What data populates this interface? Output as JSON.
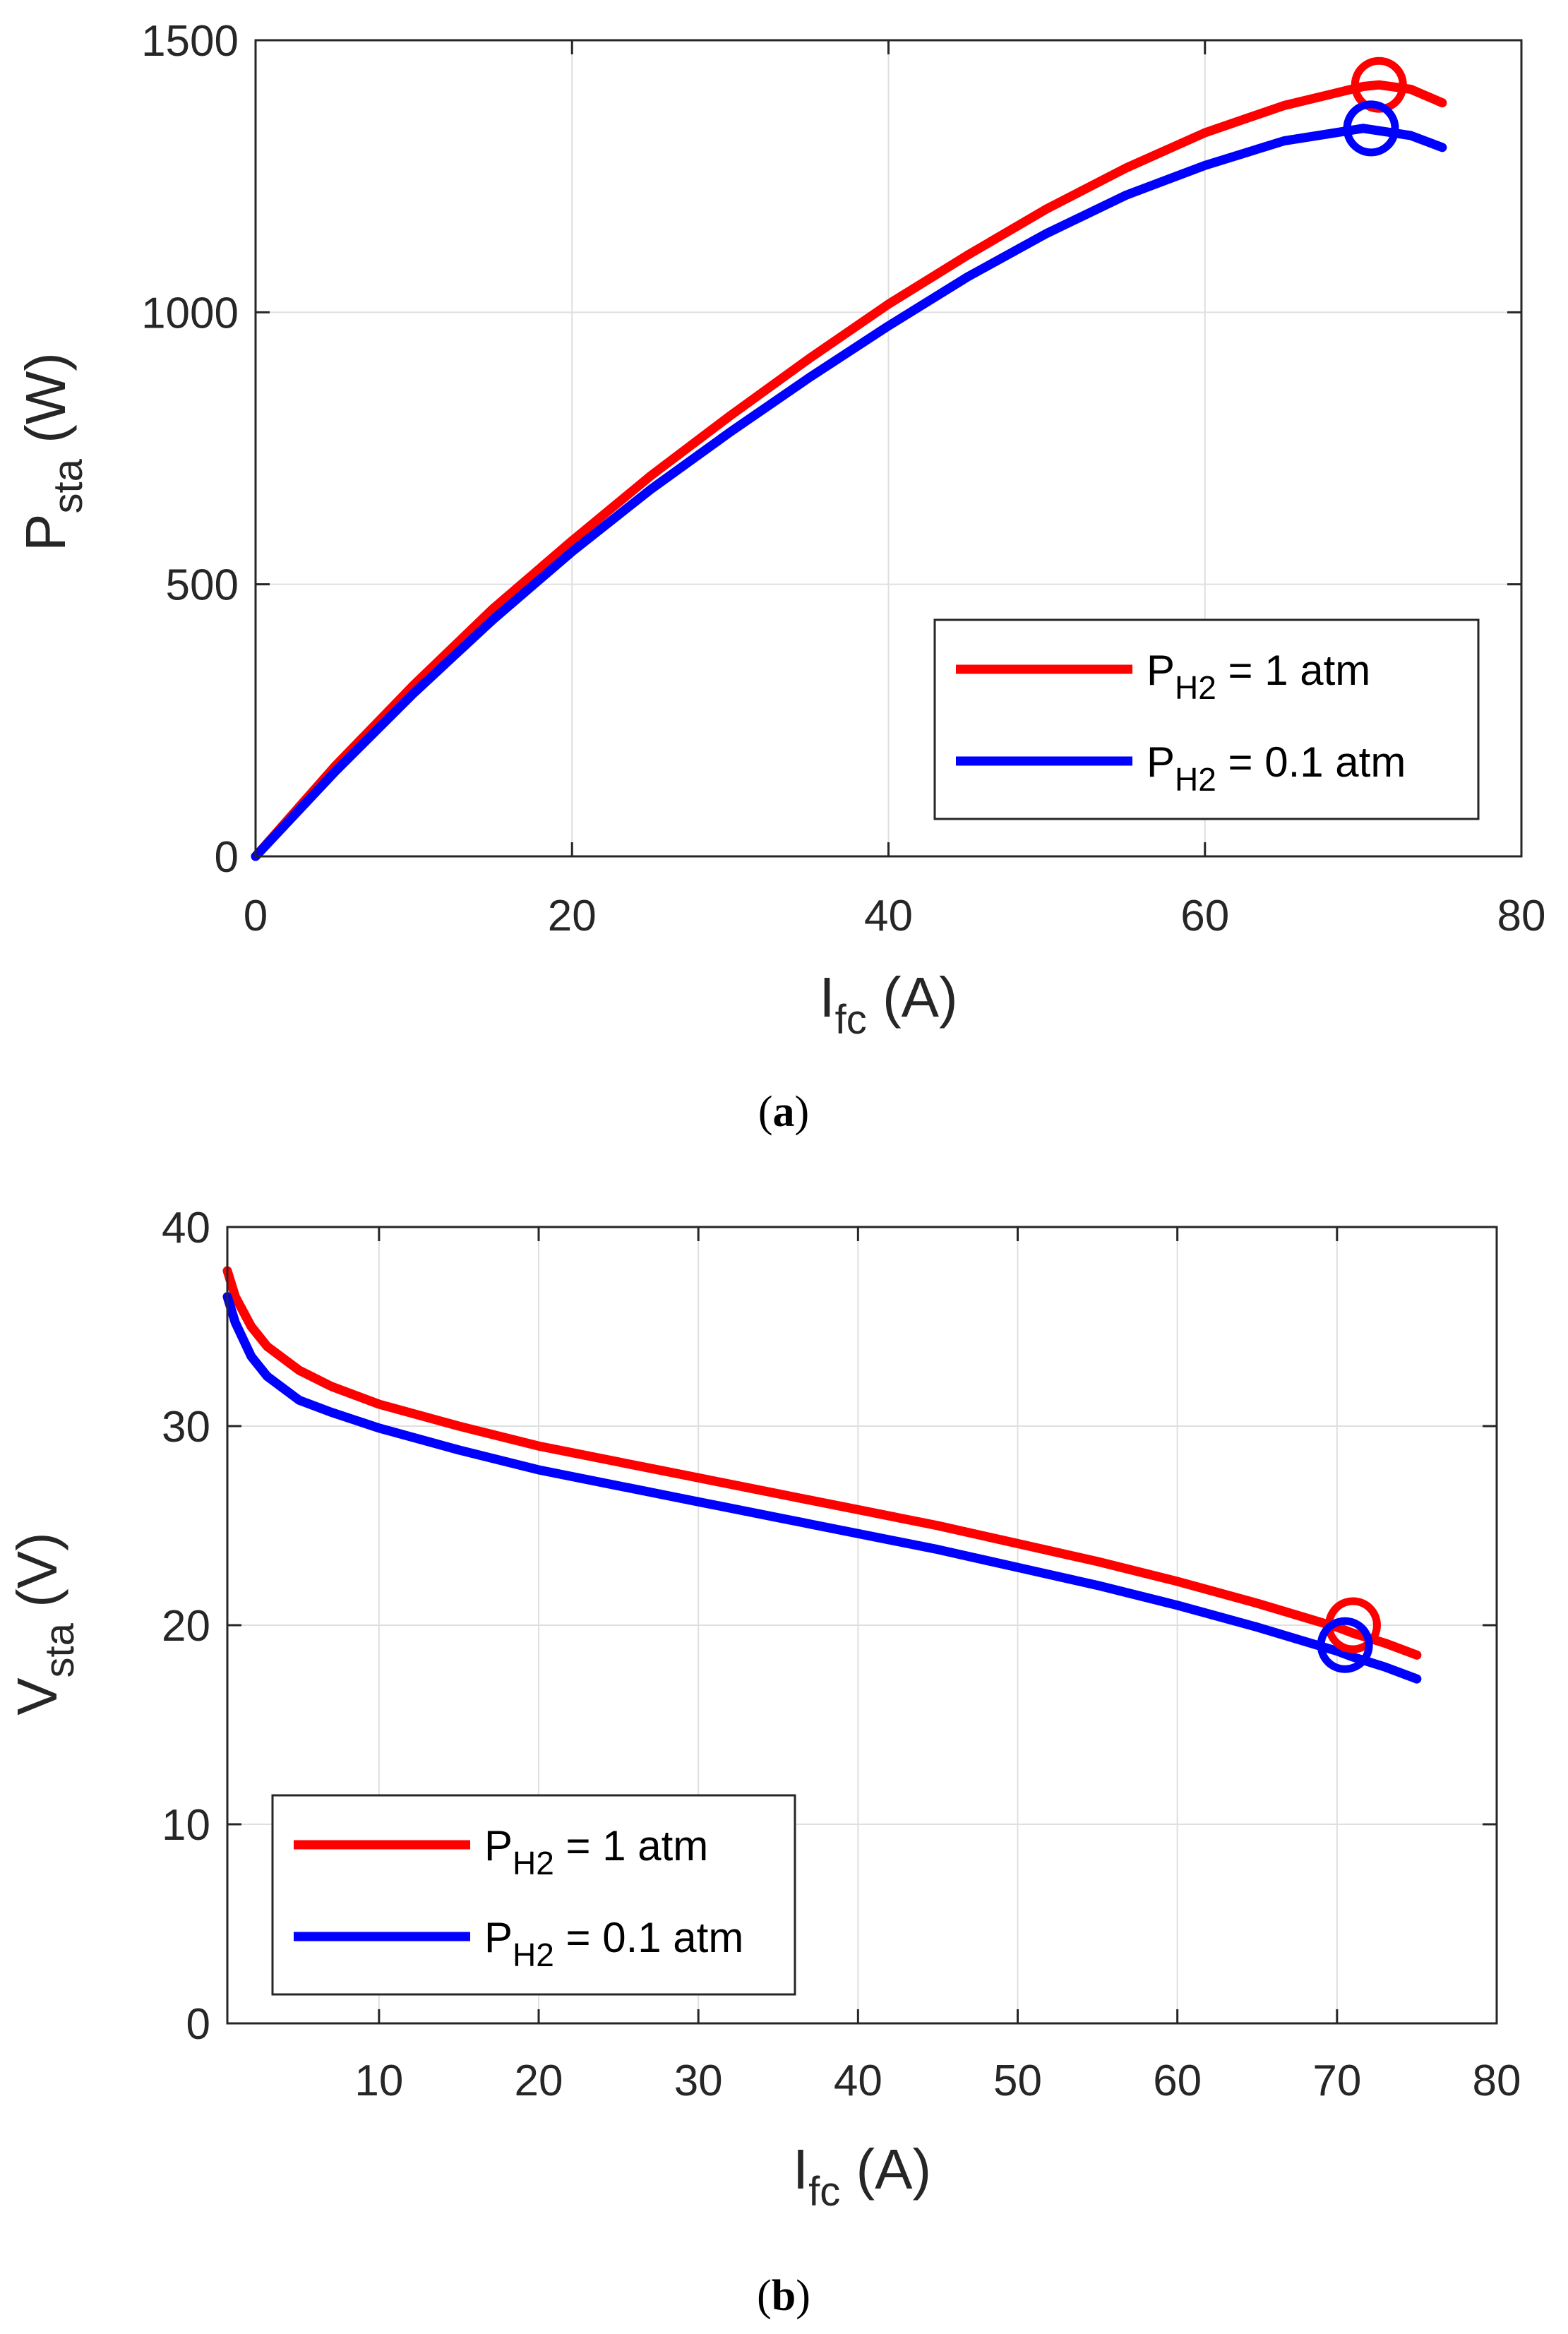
{
  "figure": {
    "panels": [
      {
        "caption_open": "(",
        "caption_letter": "a",
        "caption_close": ")"
      },
      {
        "caption_open": "(",
        "caption_letter": "b",
        "caption_close": ")"
      }
    ]
  },
  "colors": {
    "series_1": "#ff0000",
    "series_2": "#0000ff",
    "axis": "#262626",
    "grid": "#dfdfdf"
  },
  "chart_data": [
    {
      "type": "line",
      "panel": "a",
      "xlabel": {
        "main": "I",
        "sub": "fc",
        "unit": " (A)"
      },
      "ylabel": {
        "main": "P",
        "sub": "sta",
        "unit": " (W)"
      },
      "xlim": [
        0,
        80
      ],
      "ylim": [
        0,
        1500
      ],
      "xticks": [
        0,
        20,
        40,
        60,
        80
      ],
      "yticks": [
        0,
        500,
        1000,
        1500
      ],
      "grid": true,
      "legend_position": "bottom-right",
      "series": [
        {
          "name": "P_H2 = 1 atm",
          "legend": {
            "main": "P",
            "sub": "H2",
            "rest": " = 1 atm"
          },
          "color": "#ff0000",
          "x": [
            0,
            5,
            10,
            15,
            20,
            25,
            30,
            35,
            40,
            45,
            50,
            55,
            60,
            65,
            70,
            71,
            73,
            75
          ],
          "y": [
            0,
            165,
            315,
            455,
            580,
            700,
            810,
            915,
            1015,
            1105,
            1190,
            1265,
            1330,
            1380,
            1415,
            1418,
            1410,
            1385
          ],
          "marker": {
            "x": 71,
            "y": 1418
          }
        },
        {
          "name": "P_H2 = 0.1 atm",
          "legend": {
            "main": "P",
            "sub": "H2",
            "rest": " = 0.1 atm"
          },
          "color": "#0000ff",
          "x": [
            0,
            5,
            10,
            15,
            20,
            25,
            30,
            35,
            40,
            45,
            50,
            55,
            60,
            65,
            70,
            73,
            75
          ],
          "y": [
            0,
            155,
            300,
            435,
            560,
            675,
            780,
            880,
            975,
            1065,
            1145,
            1215,
            1270,
            1315,
            1338,
            1325,
            1303
          ],
          "marker": {
            "x": 70.5,
            "y": 1338
          }
        }
      ]
    },
    {
      "type": "line",
      "panel": "b",
      "xlabel": {
        "main": "I",
        "sub": "fc",
        "unit": " (A)"
      },
      "ylabel": {
        "main": "V",
        "sub": "sta",
        "unit": " (V)"
      },
      "xlim": [
        0.5,
        80
      ],
      "ylim": [
        0,
        40
      ],
      "xticks": [
        10,
        20,
        30,
        40,
        50,
        60,
        70,
        80
      ],
      "yticks": [
        0,
        10,
        20,
        30,
        40
      ],
      "grid": true,
      "legend_position": "bottom-left",
      "series": [
        {
          "name": "P_H2 = 1 atm",
          "legend": {
            "main": "P",
            "sub": "H2",
            "rest": " = 1 atm"
          },
          "color": "#ff0000",
          "x": [
            0.5,
            1,
            2,
            3,
            5,
            7,
            10,
            15,
            20,
            25,
            30,
            35,
            40,
            45,
            50,
            55,
            60,
            65,
            70,
            71,
            73,
            75
          ],
          "y": [
            37.8,
            36.5,
            35.0,
            34.0,
            32.8,
            32.0,
            31.1,
            30.0,
            29.0,
            28.2,
            27.4,
            26.6,
            25.8,
            25.0,
            24.1,
            23.2,
            22.2,
            21.1,
            19.9,
            19.6,
            19.1,
            18.5
          ],
          "marker": {
            "x": 71,
            "y": 20.0
          }
        },
        {
          "name": "P_H2 = 0.1 atm",
          "legend": {
            "main": "P",
            "sub": "H2",
            "rest": " = 0.1 atm"
          },
          "color": "#0000ff",
          "x": [
            0.5,
            1,
            2,
            3,
            5,
            7,
            10,
            15,
            20,
            25,
            30,
            35,
            40,
            45,
            50,
            55,
            60,
            65,
            70,
            71,
            73,
            75
          ],
          "y": [
            36.5,
            35.2,
            33.5,
            32.5,
            31.3,
            30.7,
            29.9,
            28.8,
            27.8,
            27.0,
            26.2,
            25.4,
            24.6,
            23.8,
            22.9,
            22.0,
            21.0,
            19.9,
            18.7,
            18.4,
            17.9,
            17.3
          ],
          "marker": {
            "x": 70.5,
            "y": 19.0
          }
        }
      ]
    }
  ]
}
